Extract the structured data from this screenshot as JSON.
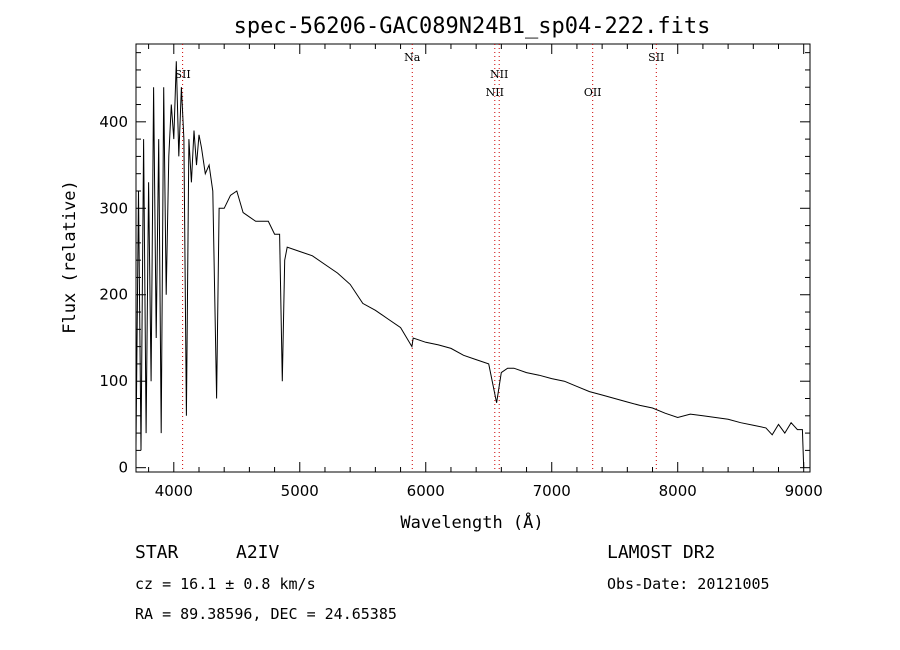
{
  "chart_data": {
    "type": "line",
    "title": "spec-56206-GAC089N24B1_sp04-222.fits",
    "xlabel": "Wavelength (Å)",
    "ylabel": "Flux (relative)",
    "xlim": [
      3700,
      9050
    ],
    "ylim": [
      -5,
      490
    ],
    "xticks": [
      4000,
      5000,
      6000,
      7000,
      8000,
      9000
    ],
    "yticks": [
      0,
      100,
      200,
      300,
      400
    ],
    "grid": false,
    "series": [
      {
        "values": [
          [
            3700,
            25
          ],
          [
            3720,
            320
          ],
          [
            3740,
            20
          ],
          [
            3760,
            380
          ],
          [
            3780,
            40
          ],
          [
            3800,
            330
          ],
          [
            3820,
            100
          ],
          [
            3840,
            440
          ],
          [
            3860,
            150
          ],
          [
            3880,
            380
          ],
          [
            3900,
            40
          ],
          [
            3920,
            440
          ],
          [
            3940,
            200
          ],
          [
            3960,
            360
          ],
          [
            3980,
            420
          ],
          [
            4000,
            380
          ],
          [
            4020,
            470
          ],
          [
            4040,
            360
          ],
          [
            4060,
            440
          ],
          [
            4080,
            380
          ],
          [
            4100,
            60
          ],
          [
            4120,
            380
          ],
          [
            4140,
            330
          ],
          [
            4160,
            390
          ],
          [
            4180,
            350
          ],
          [
            4200,
            385
          ],
          [
            4220,
            370
          ],
          [
            4250,
            340
          ],
          [
            4280,
            350
          ],
          [
            4310,
            320
          ],
          [
            4340,
            80
          ],
          [
            4360,
            300
          ],
          [
            4400,
            300
          ],
          [
            4450,
            315
          ],
          [
            4500,
            320
          ],
          [
            4550,
            295
          ],
          [
            4600,
            290
          ],
          [
            4650,
            285
          ],
          [
            4700,
            285
          ],
          [
            4750,
            285
          ],
          [
            4800,
            270
          ],
          [
            4840,
            270
          ],
          [
            4861,
            100
          ],
          [
            4880,
            240
          ],
          [
            4900,
            255
          ],
          [
            5000,
            250
          ],
          [
            5100,
            245
          ],
          [
            5200,
            235
          ],
          [
            5300,
            225
          ],
          [
            5400,
            212
          ],
          [
            5500,
            190
          ],
          [
            5600,
            182
          ],
          [
            5700,
            172
          ],
          [
            5800,
            162
          ],
          [
            5890,
            140
          ],
          [
            5900,
            150
          ],
          [
            6000,
            145
          ],
          [
            6100,
            142
          ],
          [
            6200,
            138
          ],
          [
            6300,
            130
          ],
          [
            6400,
            125
          ],
          [
            6500,
            120
          ],
          [
            6562,
            75
          ],
          [
            6600,
            110
          ],
          [
            6650,
            115
          ],
          [
            6700,
            115
          ],
          [
            6800,
            110
          ],
          [
            6900,
            107
          ],
          [
            7000,
            103
          ],
          [
            7100,
            100
          ],
          [
            7200,
            94
          ],
          [
            7300,
            88
          ],
          [
            7400,
            84
          ],
          [
            7500,
            80
          ],
          [
            7600,
            76
          ],
          [
            7700,
            72
          ],
          [
            7800,
            69
          ],
          [
            7900,
            63
          ],
          [
            8000,
            58
          ],
          [
            8100,
            62
          ],
          [
            8200,
            60
          ],
          [
            8300,
            58
          ],
          [
            8400,
            56
          ],
          [
            8500,
            52
          ],
          [
            8600,
            49
          ],
          [
            8700,
            46
          ],
          [
            8750,
            38
          ],
          [
            8800,
            50
          ],
          [
            8850,
            40
          ],
          [
            8900,
            52
          ],
          [
            8950,
            44
          ],
          [
            8990,
            44
          ],
          [
            9000,
            0
          ]
        ]
      }
    ],
    "emission_lines": [
      {
        "label": "SII",
        "x": 4070,
        "label_row": 0
      },
      {
        "label": "Na",
        "x": 5893,
        "label_row": 1
      },
      {
        "label": "NII",
        "x": 6548,
        "label_row": 3
      },
      {
        "label": "NII",
        "x": 6583,
        "label_row": 2
      },
      {
        "label": "OII",
        "x": 7325,
        "label_row": 3
      },
      {
        "label": "SII",
        "x": 7830,
        "label_row": 1
      }
    ]
  },
  "info": {
    "object_class": "STAR",
    "subclass": "A2IV",
    "survey": "LAMOST DR2",
    "cz": "cz = 16.1 ± 0.8 km/s",
    "obs_date": "Obs-Date: 20121005",
    "coords": "RA =  89.38596, DEC =  24.65385"
  },
  "colors": {
    "foreground": "#000000",
    "line_marker": "#cc0000",
    "background": "#ffffff"
  }
}
